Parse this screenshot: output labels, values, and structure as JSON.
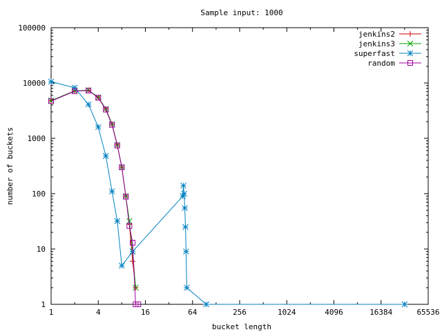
{
  "chart_data": {
    "type": "line",
    "title": "Sample input: 1000",
    "xlabel": "bucket length",
    "ylabel": "number of buckets",
    "x_scale": "log2",
    "y_scale": "log10",
    "xlim": [
      1,
      65536
    ],
    "ylim": [
      1,
      100000
    ],
    "x_ticks": [
      {
        "value": 1,
        "label": "1"
      },
      {
        "value": 4,
        "label": "4"
      },
      {
        "value": 16,
        "label": "16"
      },
      {
        "value": 64,
        "label": "64"
      },
      {
        "value": 256,
        "label": "256"
      },
      {
        "value": 1024,
        "label": "1024"
      },
      {
        "value": 4096,
        "label": "4096"
      },
      {
        "value": 16384,
        "label": "16384"
      },
      {
        "value": 65536,
        "label": "65536"
      }
    ],
    "y_ticks": [
      {
        "value": 1,
        "label": "1"
      },
      {
        "value": 10,
        "label": "10"
      },
      {
        "value": 100,
        "label": "100"
      },
      {
        "value": 1000,
        "label": "1000"
      },
      {
        "value": 10000,
        "label": "10000"
      },
      {
        "value": 100000,
        "label": "100000"
      }
    ],
    "grid": false,
    "legend_position": "top-right",
    "series": [
      {
        "name": "jenkins2",
        "color": "#cc0000",
        "marker": "plus",
        "points": [
          [
            1,
            4800
          ],
          [
            2,
            7200
          ],
          [
            3,
            7400
          ],
          [
            4,
            5500
          ],
          [
            5,
            3400
          ],
          [
            6,
            1800
          ],
          [
            7,
            760
          ],
          [
            8,
            300
          ],
          [
            9,
            90
          ],
          [
            10,
            28
          ],
          [
            11,
            6
          ],
          [
            12,
            2
          ]
        ]
      },
      {
        "name": "jenkins3",
        "color": "#00a000",
        "marker": "cross",
        "points": [
          [
            1,
            4800
          ],
          [
            2,
            7200
          ],
          [
            3,
            7400
          ],
          [
            4,
            5500
          ],
          [
            5,
            3400
          ],
          [
            6,
            1800
          ],
          [
            7,
            760
          ],
          [
            8,
            300
          ],
          [
            9,
            90
          ],
          [
            10,
            32
          ],
          [
            11,
            9
          ],
          [
            12,
            2
          ]
        ]
      },
      {
        "name": "superfast",
        "color": "#0080c0",
        "marker": "star",
        "points": [
          [
            1,
            10600
          ],
          [
            2,
            8200
          ],
          [
            3,
            4100
          ],
          [
            4,
            1600
          ],
          [
            5,
            480
          ],
          [
            6,
            110
          ],
          [
            7,
            32
          ],
          [
            8,
            5
          ],
          [
            11,
            9
          ],
          [
            48,
            90
          ],
          [
            49,
            140
          ],
          [
            50,
            100
          ],
          [
            51,
            55
          ],
          [
            52,
            25
          ],
          [
            53,
            9
          ],
          [
            54,
            2
          ],
          [
            96,
            1
          ],
          [
            32768,
            1
          ]
        ]
      },
      {
        "name": "random",
        "color": "#a000a0",
        "marker": "box",
        "points": [
          [
            1,
            4700
          ],
          [
            2,
            7100
          ],
          [
            3,
            7300
          ],
          [
            4,
            5400
          ],
          [
            5,
            3300
          ],
          [
            6,
            1750
          ],
          [
            7,
            740
          ],
          [
            8,
            300
          ],
          [
            9,
            88
          ],
          [
            10,
            26
          ],
          [
            11,
            13
          ],
          [
            12,
            1
          ],
          [
            13,
            1
          ]
        ]
      }
    ]
  }
}
